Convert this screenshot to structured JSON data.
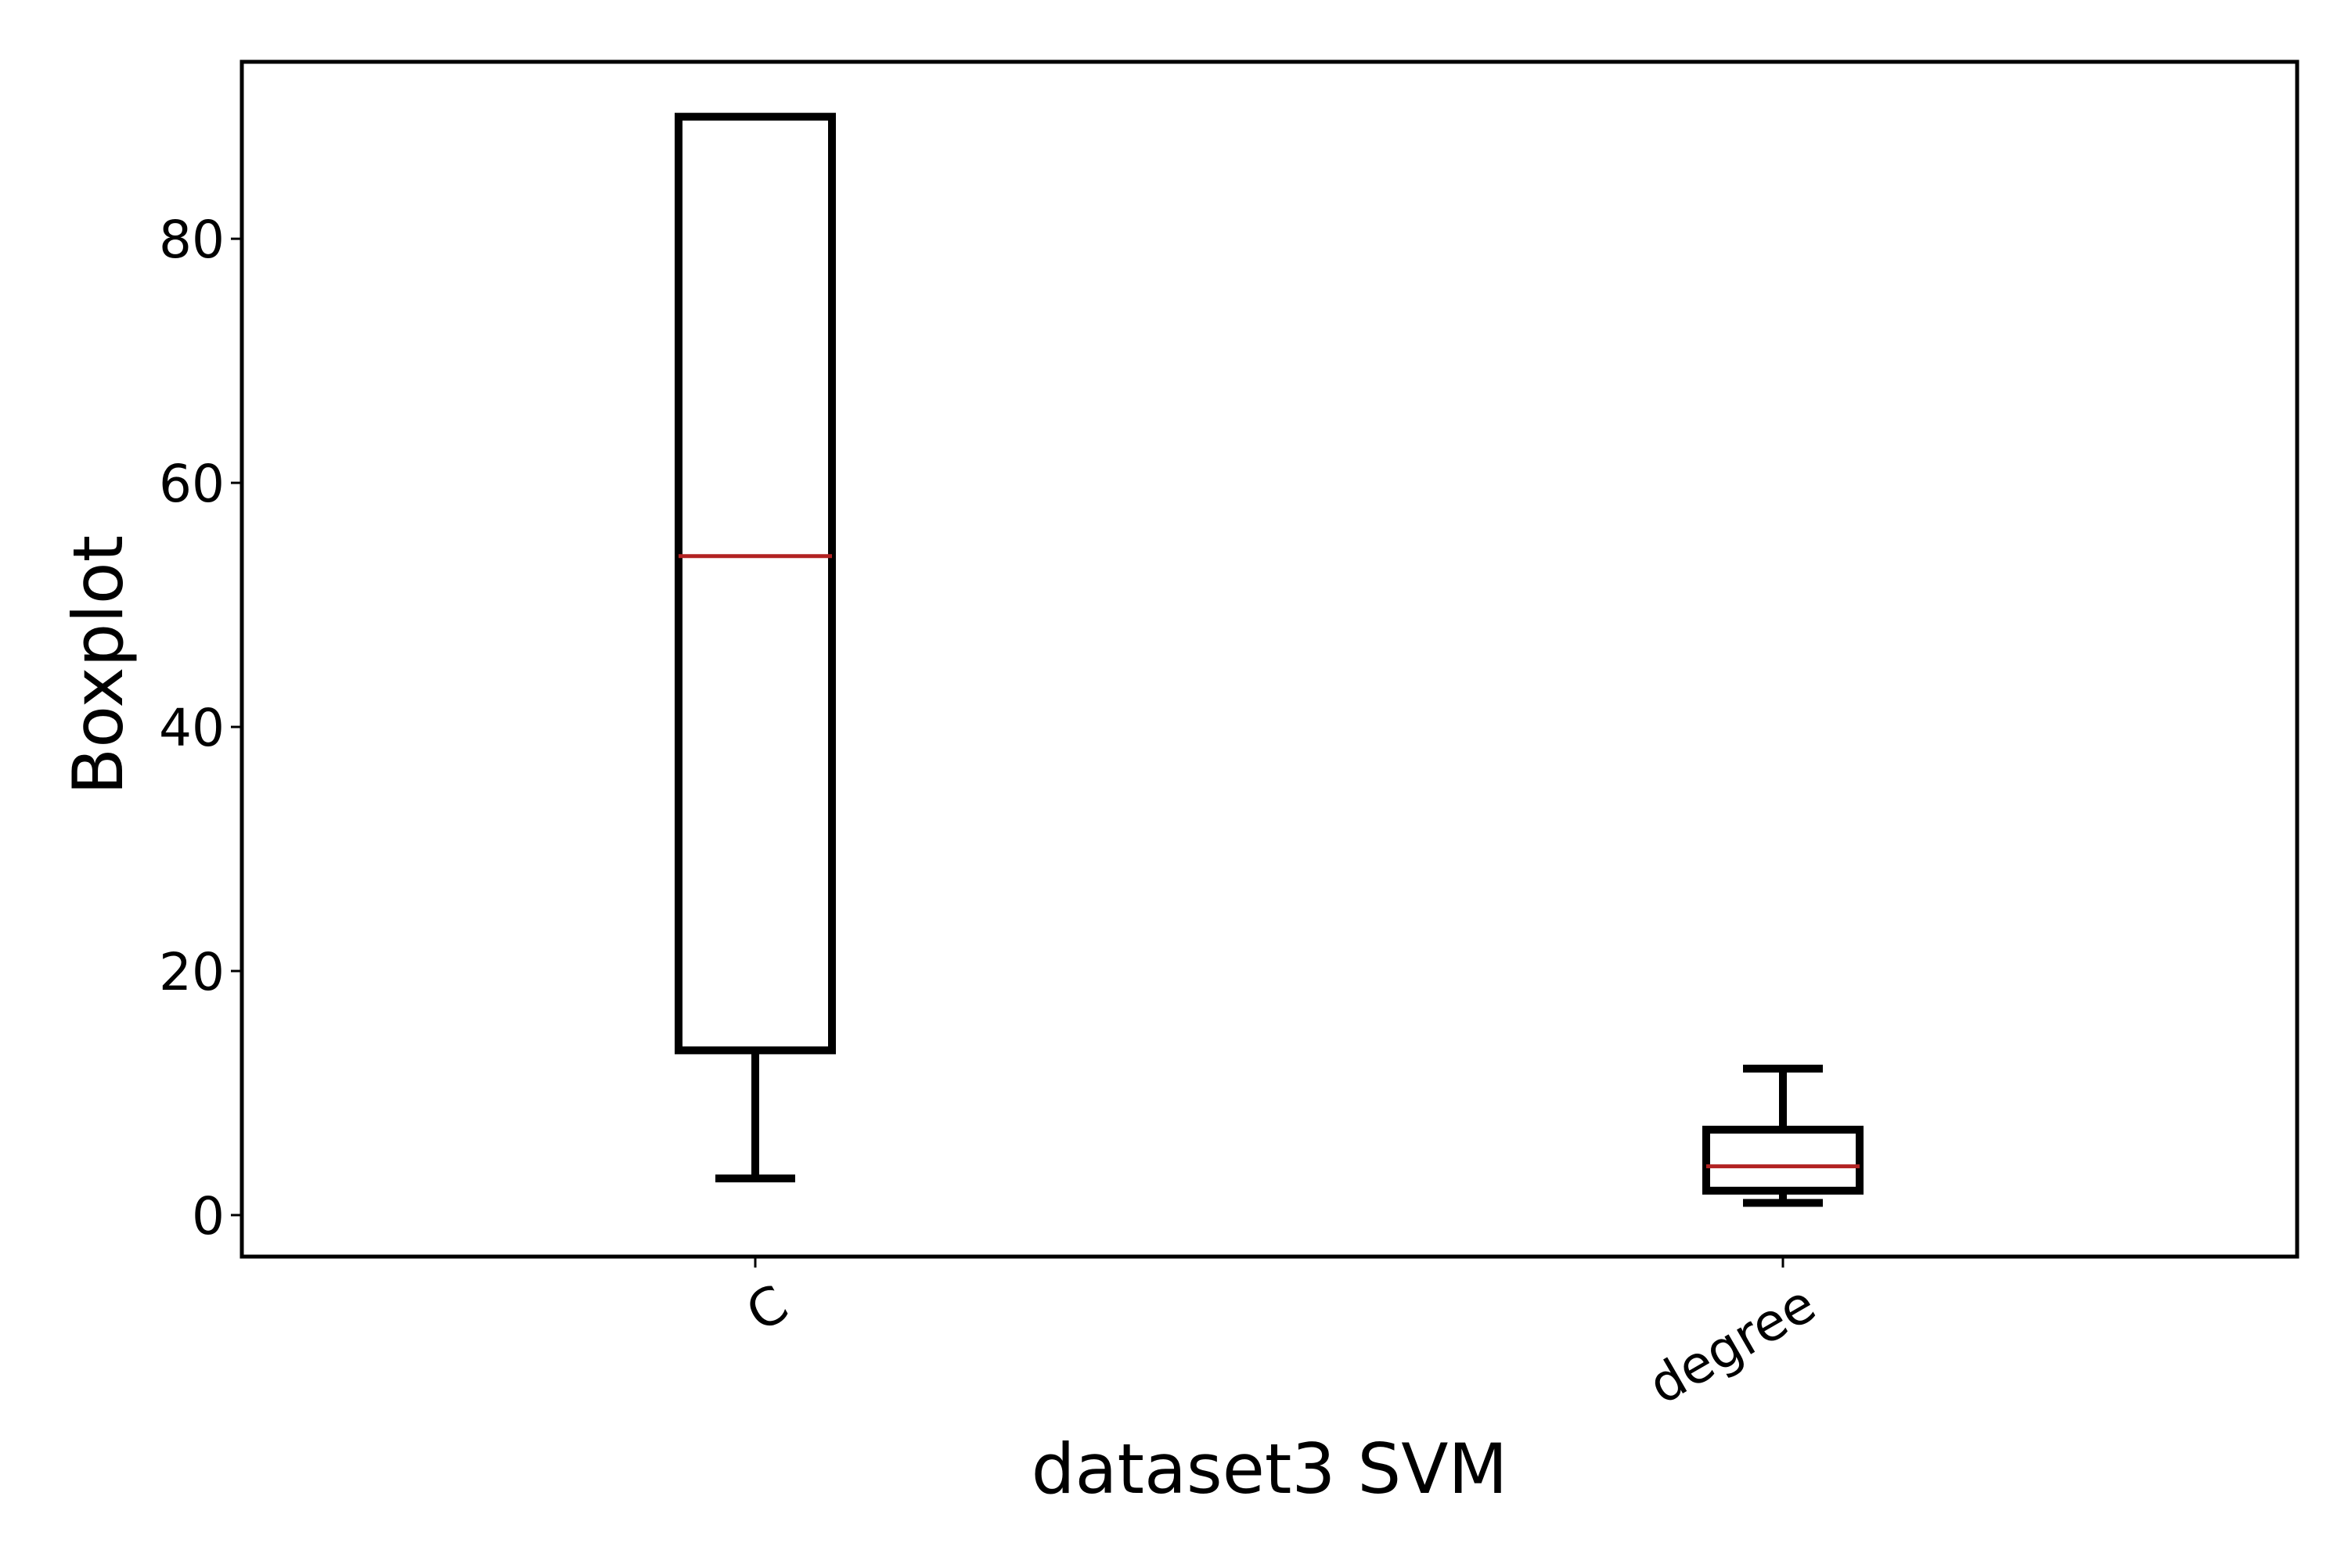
{
  "chart_data": {
    "type": "box",
    "title": "",
    "xlabel": "dataset3 SVM",
    "ylabel": "Boxplot",
    "categories": [
      "C",
      "degree"
    ],
    "boxes": [
      {
        "category": "C",
        "whisker_low": 3,
        "q1": 13.5,
        "median": 54,
        "q3": 90,
        "whisker_high": 90
      },
      {
        "category": "degree",
        "whisker_low": 1,
        "q1": 2,
        "median": 4,
        "q3": 7,
        "whisker_high": 12
      }
    ],
    "yticks": [
      0,
      20,
      40,
      60,
      80
    ],
    "ylim": [
      -3.4,
      94.5
    ],
    "grid": false,
    "colors": {
      "box": "#000000",
      "median": "#b22222",
      "axes": "#000000"
    }
  }
}
